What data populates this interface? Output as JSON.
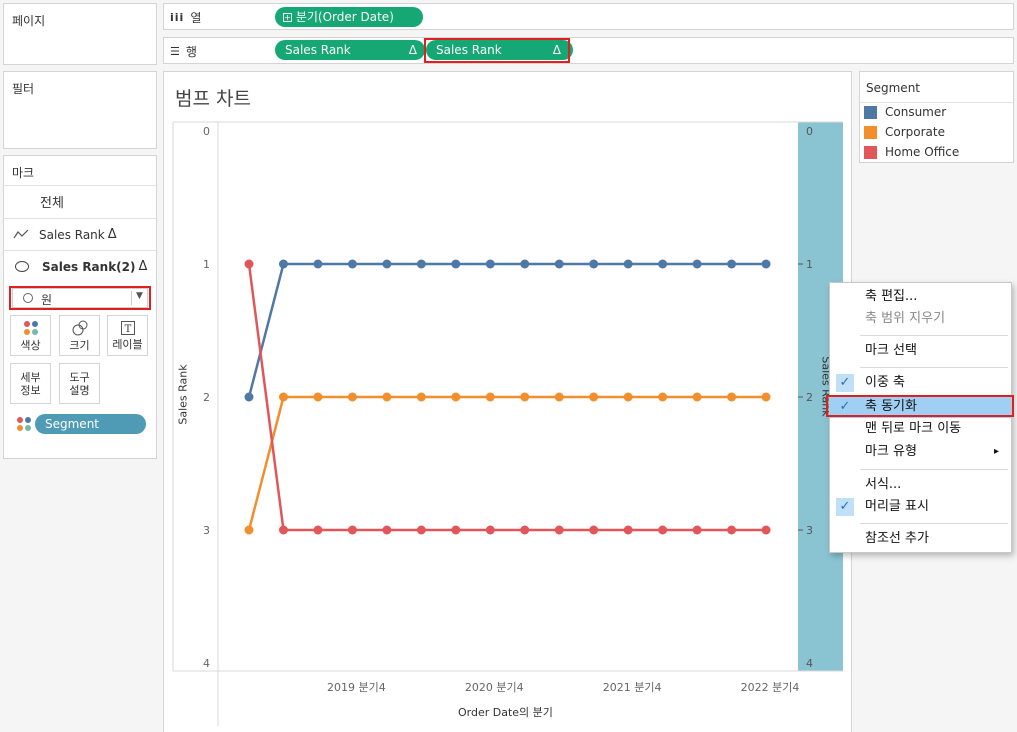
{
  "left_panels": {
    "pages_title": "페이지",
    "filters_title": "필터",
    "marks_title": "마크",
    "marks_all": "전체",
    "marks_layer1": "Sales Rank",
    "marks_layer1_delta": "Δ",
    "marks_layer2": "Sales Rank(2)",
    "marks_layer2_delta": "Δ",
    "mark_type": "원",
    "buttons": {
      "color": "색상",
      "size": "크기",
      "label": "레이블",
      "detail_l1": "세부",
      "detail_l2": "정보",
      "tooltip_l1": "도구",
      "tooltip_l2": "설명"
    },
    "segment_pill": "Segment"
  },
  "shelves": {
    "columns_label": "열",
    "columns_pill": "분기(Order Date)",
    "rows_label": "행",
    "rows_pill1": "Sales Rank",
    "rows_pill2": "Sales Rank",
    "delta": "Δ"
  },
  "chart_title": "범프 차트",
  "legend": {
    "title": "Segment",
    "items": [
      {
        "label": "Consumer",
        "color": "#4e79a7"
      },
      {
        "label": "Corporate",
        "color": "#f28e2b"
      },
      {
        "label": "Home Office",
        "color": "#e15759"
      }
    ]
  },
  "context_menu": {
    "items": [
      "축 편집...",
      "축 범위 지우기",
      "마크 선택",
      "이중 축",
      "축 동기화",
      "맨 뒤로 마크 이동",
      "마크 유형",
      "서식...",
      "머리글 표시",
      "참조선 추가"
    ],
    "submenu_arrow": "▸"
  },
  "chart_data": {
    "type": "line",
    "xlabel": "Order Date의 분기",
    "ylabel": "Sales Rank",
    "y2label": "Sales Rank",
    "ylim": [
      0,
      4
    ],
    "y_reversed": true,
    "yticks": [
      "0",
      "1",
      "2",
      "3",
      "4"
    ],
    "xticks": [
      "2019 분기4",
      "2020 분기4",
      "2021 분기4",
      "2022 분기4"
    ],
    "x_points": 16,
    "series": [
      {
        "name": "Consumer",
        "color": "#4e79a7",
        "values": [
          2,
          1,
          1,
          1,
          1,
          1,
          1,
          1,
          1,
          1,
          1,
          1,
          1,
          1,
          1,
          1
        ]
      },
      {
        "name": "Corporate",
        "color": "#f28e2b",
        "values": [
          3,
          2,
          2,
          2,
          2,
          2,
          2,
          2,
          2,
          2,
          2,
          2,
          2,
          2,
          2,
          2
        ]
      },
      {
        "name": "Home Office",
        "color": "#e15759",
        "values": [
          1,
          3,
          3,
          3,
          3,
          3,
          3,
          3,
          3,
          3,
          3,
          3,
          3,
          3,
          3,
          3
        ]
      }
    ]
  }
}
